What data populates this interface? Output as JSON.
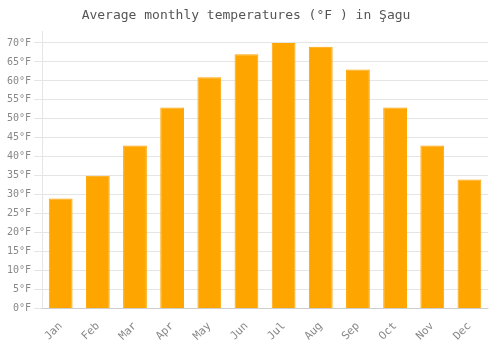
{
  "chart_data": {
    "type": "bar",
    "title": "Average monthly temperatures (°F ) in Şagu",
    "categories": [
      "Jan",
      "Feb",
      "Mar",
      "Apr",
      "May",
      "Jun",
      "Jul",
      "Aug",
      "Sep",
      "Oct",
      "Nov",
      "Dec"
    ],
    "values": [
      29,
      35,
      43,
      53,
      61,
      67,
      70,
      69,
      63,
      53,
      43,
      34
    ],
    "color": "#FFA500",
    "ylim": [
      0,
      73
    ],
    "yticks": [
      {
        "value": 0,
        "label": "0°F"
      },
      {
        "value": 5,
        "label": "5°F"
      },
      {
        "value": 10,
        "label": "10°F"
      },
      {
        "value": 15,
        "label": "15°F"
      },
      {
        "value": 20,
        "label": "20°F"
      },
      {
        "value": 25,
        "label": "25°F"
      },
      {
        "value": 30,
        "label": "30°F"
      },
      {
        "value": 35,
        "label": "35°F"
      },
      {
        "value": 40,
        "label": "40°F"
      },
      {
        "value": 45,
        "label": "45°F"
      },
      {
        "value": 50,
        "label": "50°F"
      },
      {
        "value": 55,
        "label": "55°F"
      },
      {
        "value": 60,
        "label": "60°F"
      },
      {
        "value": 65,
        "label": "65°F"
      },
      {
        "value": 70,
        "label": "70°F"
      }
    ],
    "grid": true
  }
}
